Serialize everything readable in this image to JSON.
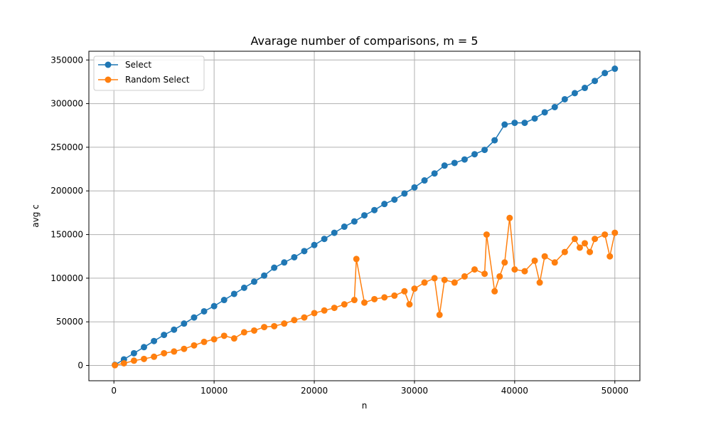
{
  "chart_data": {
    "type": "line",
    "title": "Avarage number of comparisons, m = 5",
    "xlabel": "n",
    "ylabel": "avg c",
    "xlim": [
      -2500,
      52500
    ],
    "ylim": [
      -17500,
      360000
    ],
    "x_ticks": [
      0,
      10000,
      20000,
      30000,
      40000,
      50000
    ],
    "x_tick_labels": [
      "0",
      "10000",
      "20000",
      "30000",
      "40000",
      "50000"
    ],
    "y_ticks": [
      0,
      50000,
      100000,
      150000,
      200000,
      250000,
      300000,
      350000
    ],
    "y_tick_labels": [
      "0",
      "50000",
      "100000",
      "150000",
      "200000",
      "250000",
      "300000",
      "350000"
    ],
    "grid": true,
    "legend_position": "top-left",
    "series": [
      {
        "name": "Select",
        "color": "#1f77b4",
        "marker": "circle",
        "x": [
          100,
          1000,
          2000,
          3000,
          4000,
          5000,
          6000,
          7000,
          8000,
          9000,
          10000,
          11000,
          12000,
          13000,
          14000,
          15000,
          16000,
          17000,
          18000,
          19000,
          20000,
          21000,
          22000,
          23000,
          24000,
          25000,
          26000,
          27000,
          28000,
          29000,
          30000,
          31000,
          32000,
          33000,
          34000,
          35000,
          36000,
          37000,
          38000,
          39000,
          40000,
          41000,
          42000,
          43000,
          44000,
          45000,
          46000,
          47000,
          48000,
          49000,
          50000
        ],
        "y": [
          700,
          7000,
          14000,
          21000,
          28000,
          35000,
          41000,
          48000,
          55000,
          62000,
          68000,
          75000,
          82000,
          89000,
          96000,
          103000,
          112000,
          118000,
          124000,
          131000,
          138000,
          145000,
          152000,
          159000,
          165000,
          172000,
          178000,
          185000,
          190000,
          197000,
          204000,
          212000,
          220000,
          229000,
          232000,
          236000,
          242000,
          247000,
          258000,
          276000,
          278000,
          278000,
          283000,
          290000,
          296000,
          305000,
          312000,
          318000,
          326000,
          335000,
          340000
        ]
      },
      {
        "name": "Random Select",
        "color": "#ff7f0e",
        "marker": "circle",
        "x": [
          100,
          1000,
          2000,
          3000,
          4000,
          5000,
          6000,
          7000,
          8000,
          9000,
          10000,
          11000,
          12000,
          13000,
          14000,
          15000,
          16000,
          17000,
          18000,
          19000,
          20000,
          21000,
          22000,
          23000,
          24000,
          24200,
          25000,
          26000,
          27000,
          28000,
          29000,
          29500,
          30000,
          31000,
          32000,
          32500,
          33000,
          34000,
          35000,
          36000,
          37000,
          37200,
          38000,
          38500,
          39000,
          39500,
          40000,
          41000,
          42000,
          42500,
          43000,
          44000,
          45000,
          46000,
          46500,
          47000,
          47500,
          48000,
          49000,
          49500,
          50000
        ],
        "y": [
          300,
          2500,
          5500,
          7500,
          10000,
          14000,
          16000,
          19000,
          23000,
          27000,
          30000,
          34000,
          31000,
          38000,
          40000,
          44000,
          45000,
          48000,
          52000,
          55000,
          60000,
          63000,
          66000,
          70000,
          75000,
          122000,
          72000,
          76000,
          78000,
          80000,
          85000,
          70000,
          88000,
          95000,
          100000,
          58000,
          98000,
          95000,
          102000,
          110000,
          105000,
          150000,
          85000,
          102000,
          118000,
          169000,
          110000,
          108000,
          120000,
          95000,
          125000,
          118000,
          130000,
          145000,
          135000,
          140000,
          130000,
          145000,
          150000,
          125000,
          152000
        ]
      }
    ]
  }
}
